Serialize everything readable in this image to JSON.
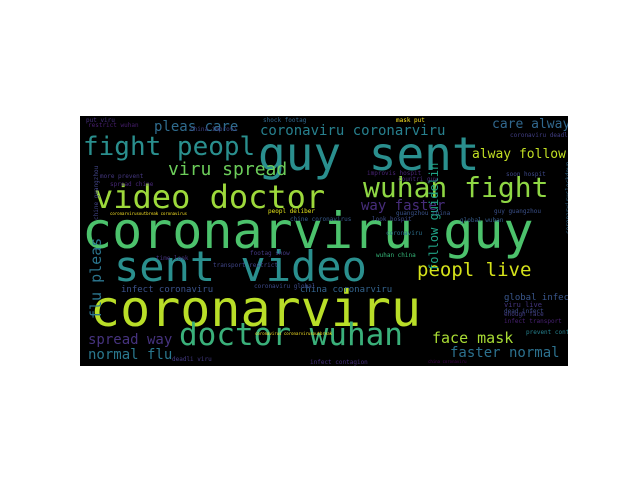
{
  "wordcloud": {
    "palette": {
      "background": "#000000",
      "colormap": "viridis"
    },
    "words": [
      {
        "text": "coronarviru",
        "color": "#b9de28"
      },
      {
        "text": "coronarviru guy",
        "color": "#4cc26c"
      },
      {
        "text": "sent video",
        "color": "#2a8f8e"
      },
      {
        "text": "guy sent",
        "color": "#2a8f8e"
      },
      {
        "text": "video doctor",
        "color": "#9dd93b"
      },
      {
        "text": "doctor wuhan",
        "color": "#3ab07a"
      },
      {
        "text": "wuhan fight",
        "color": "#8fd744"
      },
      {
        "text": "fight peopl",
        "color": "#2a8f8e"
      },
      {
        "text": "peopl live",
        "color": "#d5e21a"
      },
      {
        "text": "viru spread",
        "color": "#6ccd5a"
      },
      {
        "text": "coronaviru coronarviru",
        "color": "#27808e"
      },
      {
        "text": "pleas care",
        "color": "#2f6c8e"
      },
      {
        "text": "care alway",
        "color": "#31688e"
      },
      {
        "text": "way faster",
        "color": "#472d7b"
      },
      {
        "text": "alway follow",
        "color": "#c2df23"
      },
      {
        "text": "face mask",
        "color": "#a8db34"
      },
      {
        "text": "faster normal",
        "color": "#2c718e"
      },
      {
        "text": "normal flu",
        "color": "#2a788e"
      },
      {
        "text": "spread way",
        "color": "#46337f"
      },
      {
        "text": "flu pleas",
        "color": "#2b758e"
      },
      {
        "text": "follow guidelin",
        "color": "#20a386"
      },
      {
        "text": "infect coronaviru",
        "color": "#3b528b"
      },
      {
        "text": "china coronarviru",
        "color": "#33638d"
      },
      {
        "text": "global infect",
        "color": "#39568c"
      },
      {
        "text": "coronaviru global",
        "color": "#3e4a89"
      },
      {
        "text": "transport restrict",
        "color": "#404688"
      },
      {
        "text": "footag show",
        "color": "#443983"
      },
      {
        "text": "wuhan china",
        "color": "#35b779"
      },
      {
        "text": "guangzhou china",
        "color": "#3a548c"
      },
      {
        "text": "peopl deliber",
        "color": "#e5e419"
      },
      {
        "text": "viru live",
        "color": "#453581"
      },
      {
        "text": "dead infect",
        "color": "#3e4c8a"
      },
      {
        "text": "prevent contract",
        "color": "#26828e"
      },
      {
        "text": "enough face",
        "color": "#433e85"
      },
      {
        "text": "infect transport",
        "color": "#482173"
      },
      {
        "text": "time look",
        "color": "#46327e"
      },
      {
        "text": "china improvi",
        "color": "#404387"
      },
      {
        "text": "restrict wuhan",
        "color": "#481f70"
      },
      {
        "text": "shock footag",
        "color": "#31688e"
      },
      {
        "text": "mask put",
        "color": "#fde725"
      },
      {
        "text": "soon hospit",
        "color": "#3e4989"
      },
      {
        "text": "improvis hospit",
        "color": "#482475"
      },
      {
        "text": "countri guy",
        "color": "#472c7a"
      },
      {
        "text": "put viru",
        "color": "#46307e"
      },
      {
        "text": "more prevent",
        "color": "#453882"
      },
      {
        "text": "spread chine",
        "color": "#482878"
      },
      {
        "text": "chine guangzhou",
        "color": "#414487"
      },
      {
        "text": "guy guangzhou",
        "color": "#3b518b"
      },
      {
        "text": "coronaviru deadli",
        "color": "#423f85"
      },
      {
        "text": "chine coronavirus",
        "color": "#375a8c"
      },
      {
        "text": "look hospit",
        "color": "#3d4d8a"
      },
      {
        "text": "global wuhan",
        "color": "#365d8d"
      },
      {
        "text": "coronaviru",
        "color": "#2d708e"
      },
      {
        "text": "deadli viru",
        "color": "#443a83"
      },
      {
        "text": "china coronaviru",
        "color": "#440154"
      },
      {
        "text": "coronarvirusoutbreak coronavirus",
        "color": "#fde725"
      },
      {
        "text": "coronavirus coronarvirusoutbreak",
        "color": "#fde725"
      },
      {
        "text": "coronarviruslockdown",
        "color": "#31688e"
      },
      {
        "text": "infect contagion",
        "color": "#472f7d"
      },
      {
        "text": "around",
        "color": "#3f4788"
      }
    ]
  }
}
